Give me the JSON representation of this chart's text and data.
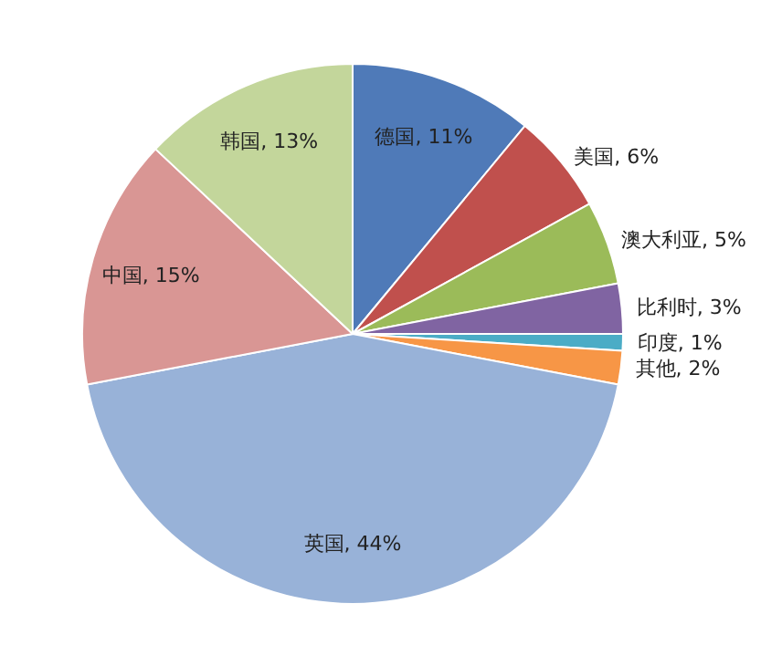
{
  "chart_data": {
    "type": "pie",
    "categories": [
      "德国",
      "美国",
      "澳大利亚",
      "比利时",
      "印度",
      "其他",
      "英国",
      "中国",
      "韩国"
    ],
    "values": [
      11,
      6,
      5,
      3,
      1,
      2,
      44,
      15,
      13
    ],
    "value_labels": [
      "11%",
      "6%",
      "5%",
      "3%",
      "1%",
      "2%",
      "44%",
      "15%",
      "13%"
    ],
    "colors": [
      "#4f7ab8",
      "#c0504d",
      "#9bbb59",
      "#8064a2",
      "#4bacc6",
      "#f79646",
      "#98b2d8",
      "#d99694",
      "#c3d69b"
    ],
    "legend": false
  }
}
